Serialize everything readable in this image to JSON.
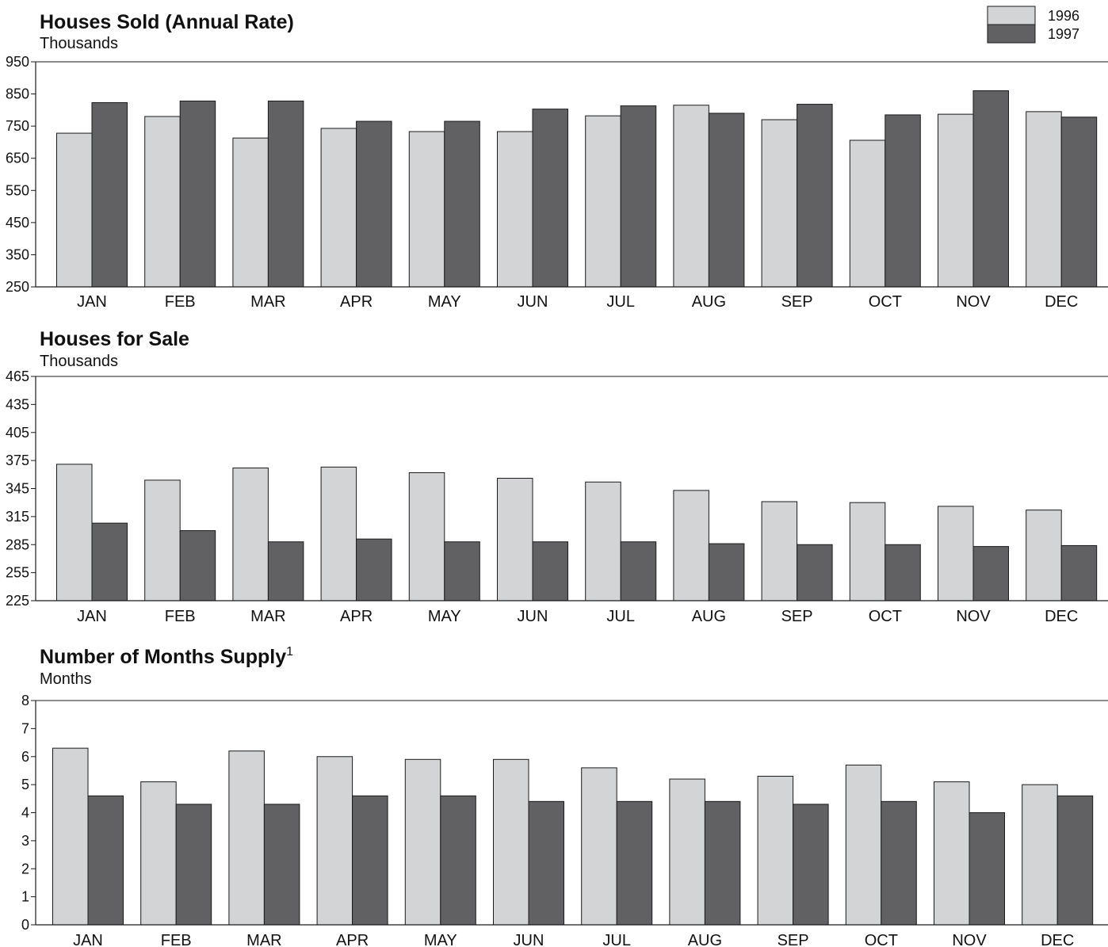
{
  "legend": {
    "entries": [
      "1996",
      "1997"
    ]
  },
  "colors": {
    "s1996": "#d3d4d6",
    "s1997": "#616163",
    "stroke": "#1a1a1a"
  },
  "chart_data": [
    {
      "type": "bar",
      "title": "Houses Sold (Annual Rate)",
      "title_superscript": "",
      "ylabel": "Thousands",
      "categories": [
        "JAN",
        "FEB",
        "MAR",
        "APR",
        "MAY",
        "JUN",
        "JUL",
        "AUG",
        "SEP",
        "OCT",
        "NOV",
        "DEC"
      ],
      "ylim": [
        250,
        950
      ],
      "yticks": [
        250,
        350,
        450,
        550,
        650,
        750,
        850,
        950
      ],
      "series": [
        {
          "name": "1996",
          "values": [
            728,
            780,
            713,
            743,
            733,
            733,
            782,
            815,
            770,
            706,
            787,
            795
          ]
        },
        {
          "name": "1997",
          "values": [
            823,
            828,
            828,
            765,
            765,
            803,
            813,
            790,
            818,
            785,
            860,
            778
          ]
        }
      ]
    },
    {
      "type": "bar",
      "title": "Houses for Sale",
      "title_superscript": "",
      "ylabel": "Thousands",
      "categories": [
        "JAN",
        "FEB",
        "MAR",
        "APR",
        "MAY",
        "JUN",
        "JUL",
        "AUG",
        "SEP",
        "OCT",
        "NOV",
        "DEC"
      ],
      "ylim": [
        225,
        465
      ],
      "yticks": [
        225,
        255,
        285,
        315,
        345,
        375,
        405,
        435,
        465
      ],
      "series": [
        {
          "name": "1996",
          "values": [
            371,
            354,
            367,
            368,
            362,
            356,
            352,
            343,
            331,
            330,
            326,
            322
          ]
        },
        {
          "name": "1997",
          "values": [
            308,
            300,
            288,
            291,
            288,
            288,
            288,
            286,
            285,
            285,
            283,
            284
          ]
        }
      ]
    },
    {
      "type": "bar",
      "title": "Number of Months Supply",
      "title_superscript": "1",
      "ylabel": "Months",
      "categories": [
        "JAN",
        "FEB",
        "MAR",
        "APR",
        "MAY",
        "JUN",
        "JUL",
        "AUG",
        "SEP",
        "OCT",
        "NOV",
        "DEC"
      ],
      "ylim": [
        0,
        8
      ],
      "yticks": [
        0,
        1,
        2,
        3,
        4,
        5,
        6,
        7,
        8
      ],
      "series": [
        {
          "name": "1996",
          "values": [
            6.3,
            5.1,
            6.2,
            6.0,
            5.9,
            5.9,
            5.6,
            5.2,
            5.3,
            5.7,
            5.1,
            5.0
          ]
        },
        {
          "name": "1997",
          "values": [
            4.6,
            4.3,
            4.3,
            4.6,
            4.6,
            4.4,
            4.4,
            4.4,
            4.3,
            4.4,
            4.0,
            4.6
          ]
        }
      ]
    }
  ]
}
